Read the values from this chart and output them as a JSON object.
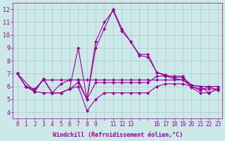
{
  "xlabel": "Windchill (Refroidissement éolien,°C)",
  "background_color": "#cce8e8",
  "line_color": "#990099",
  "grid_color": "#aacccc",
  "ylim": [
    3.5,
    12.5
  ],
  "xlim": [
    -0.5,
    23.5
  ],
  "yticks": [
    4,
    5,
    6,
    7,
    8,
    9,
    10,
    11,
    12
  ],
  "xtick_skip": [
    10,
    14,
    15
  ],
  "lines": [
    {
      "x": [
        0,
        1,
        2,
        3,
        4,
        5,
        6,
        7,
        8,
        9,
        10,
        11,
        12,
        13,
        14,
        15,
        16,
        17,
        18,
        19,
        20,
        21,
        22,
        23
      ],
      "y": [
        7.0,
        6.0,
        5.8,
        6.5,
        6.5,
        6.5,
        6.5,
        6.5,
        6.5,
        6.5,
        6.5,
        6.5,
        6.5,
        6.5,
        6.5,
        6.5,
        6.5,
        6.5,
        6.5,
        6.5,
        6.1,
        6.0,
        6.0,
        6.0
      ]
    },
    {
      "x": [
        0,
        1,
        2,
        3,
        4,
        5,
        6,
        7,
        8,
        9,
        10,
        11,
        12,
        13,
        14,
        15,
        16,
        17,
        18,
        19,
        20,
        21,
        22,
        23
      ],
      "y": [
        7.0,
        6.0,
        5.6,
        5.5,
        5.5,
        5.5,
        5.8,
        6.0,
        4.1,
        5.0,
        5.5,
        5.5,
        5.5,
        5.5,
        5.5,
        5.5,
        6.0,
        6.2,
        6.2,
        6.2,
        6.0,
        5.8,
        5.8,
        5.8
      ]
    },
    {
      "x": [
        0,
        1,
        2,
        3,
        4,
        5,
        6,
        7,
        8,
        9,
        10,
        11,
        12,
        13,
        14,
        15,
        16,
        17,
        18,
        19,
        20,
        21,
        22,
        23
      ],
      "y": [
        7.0,
        6.0,
        5.6,
        6.6,
        5.5,
        6.2,
        6.5,
        6.5,
        5.0,
        6.3,
        6.3,
        6.3,
        6.3,
        6.3,
        6.3,
        6.3,
        6.8,
        6.8,
        6.8,
        6.8,
        5.9,
        5.5,
        5.5,
        5.8
      ]
    },
    {
      "x": [
        0,
        1,
        2,
        3,
        4,
        5,
        6,
        7,
        8,
        9,
        10,
        11,
        12,
        13,
        14,
        15,
        16,
        17,
        18,
        19,
        20,
        21,
        22,
        23
      ],
      "y": [
        7.0,
        6.0,
        5.6,
        6.6,
        5.5,
        5.5,
        5.8,
        9.0,
        5.0,
        9.5,
        11.0,
        11.9,
        10.3,
        9.5,
        8.5,
        8.5,
        7.1,
        6.9,
        6.7,
        6.7,
        6.1,
        6.0,
        5.5,
        5.8
      ]
    },
    {
      "x": [
        0,
        2,
        3,
        4,
        5,
        6,
        7,
        8,
        9,
        10,
        11,
        12,
        13,
        14,
        15,
        16,
        17,
        18,
        19,
        20,
        21,
        22,
        23
      ],
      "y": [
        7.0,
        5.6,
        6.6,
        5.5,
        5.5,
        5.8,
        6.3,
        5.0,
        9.0,
        10.5,
        12.0,
        10.5,
        9.5,
        8.4,
        8.3,
        7.1,
        6.8,
        6.6,
        6.5,
        6.0,
        5.7,
        6.0,
        5.7
      ]
    }
  ]
}
